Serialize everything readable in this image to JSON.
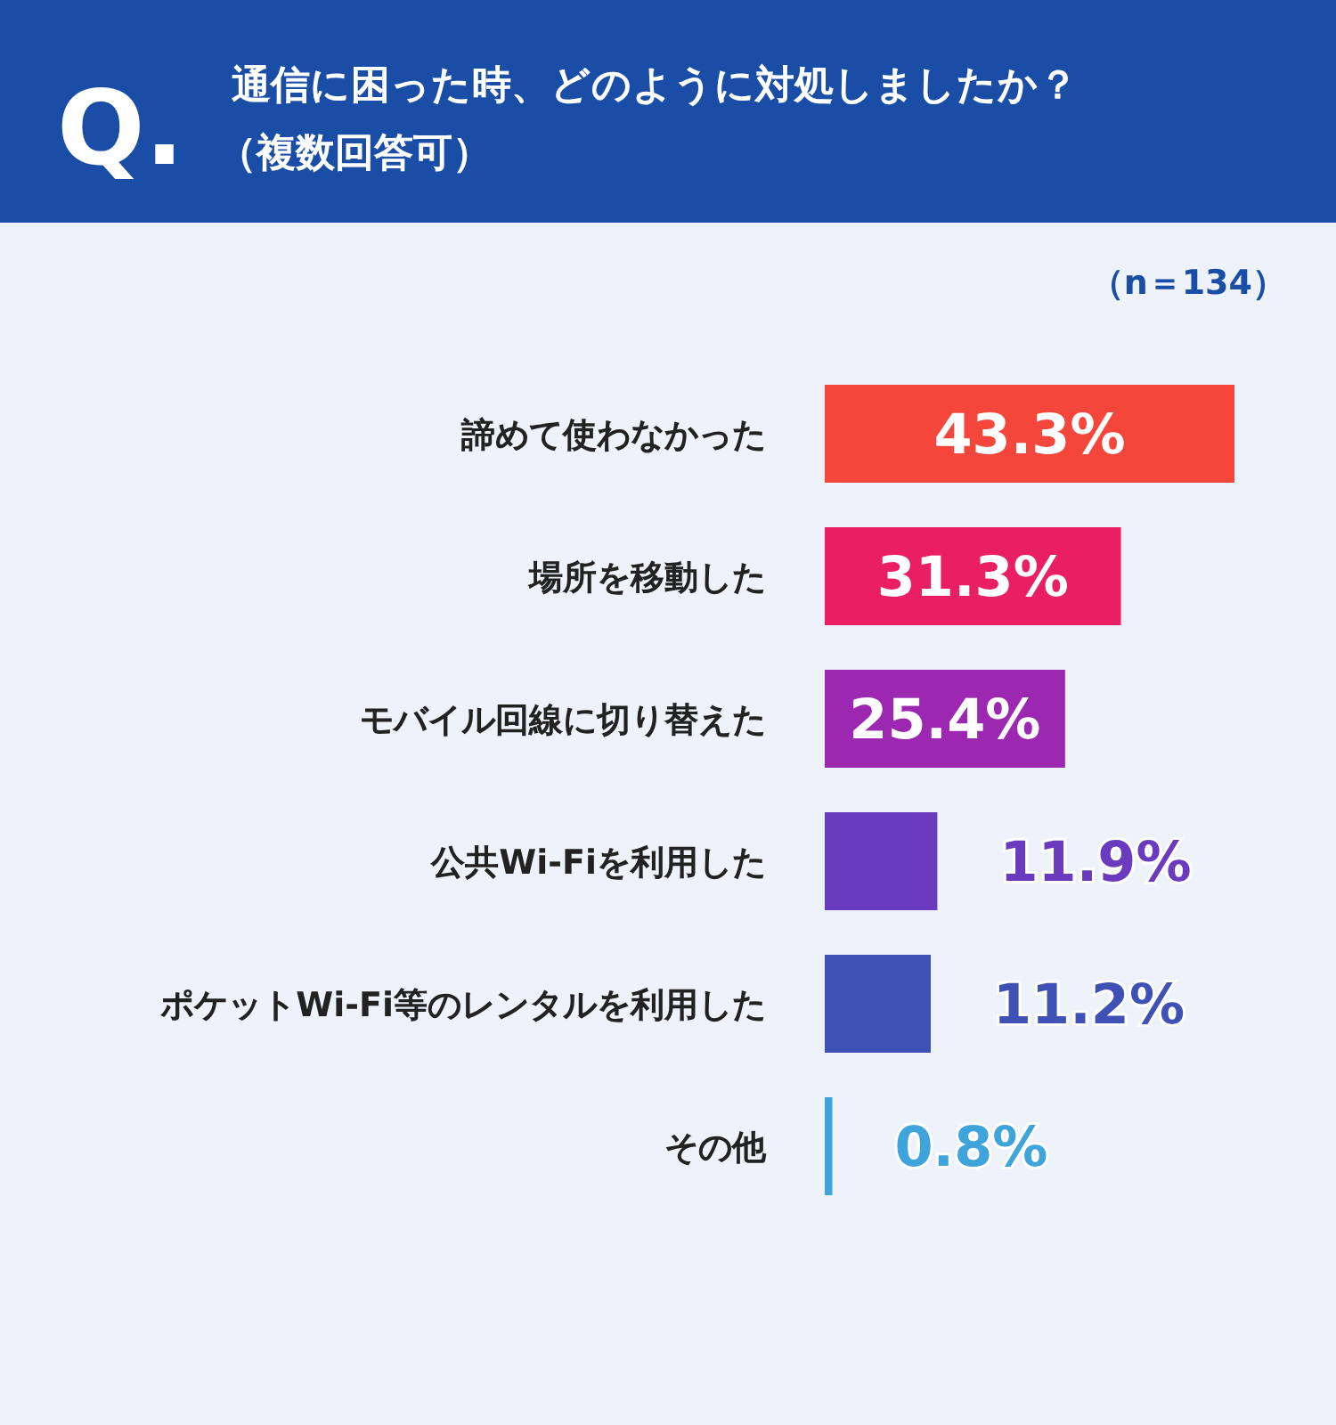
{
  "chart_data": {
    "type": "bar",
    "orientation": "horizontal",
    "title": "通信に困った時、どのように対処しましたか？",
    "subtitle": "（複数回答可）",
    "annotations": [
      "Q.",
      "（n＝134）"
    ],
    "categories": [
      "諦めて使わなかった",
      "場所を移動した",
      "モバイル回線に切り替えた",
      "公共Wi-Fiを利用した",
      "ポケットWi-Fi等のレンタルを利用した",
      "その他"
    ],
    "values": [
      43.3,
      31.3,
      25.4,
      11.9,
      11.2,
      0.8
    ],
    "value_labels": [
      "43.3%",
      "31.3%",
      "25.4%",
      "11.9%",
      "11.2%",
      "0.8%"
    ],
    "colors": [
      "#f4463a",
      "#e91e63",
      "#9c27b0",
      "#6a3bbf",
      "#3f51b5",
      "#3fa3dc"
    ]
  }
}
